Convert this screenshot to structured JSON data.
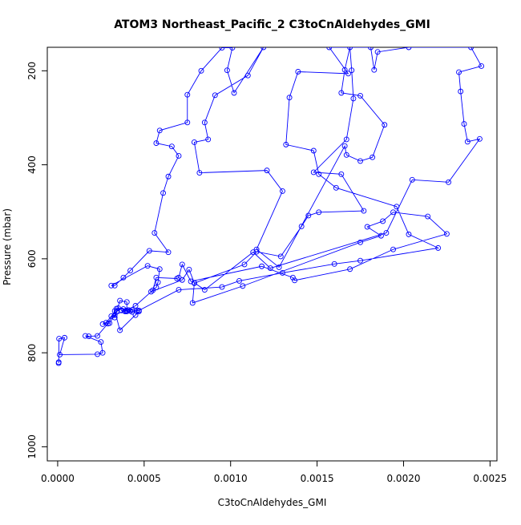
{
  "chart_data": {
    "type": "line",
    "title": "ATOM3 Northeast_Pacific_2 C3toCnAldehydes_GMI",
    "xlabel": "C3toCnAldehydes_GMI",
    "ylabel": "Pressure (mbar)",
    "xlim": [
      -6e-05,
      0.00254
    ],
    "ylim": [
      1030,
      150
    ],
    "y_reversed": true,
    "grid": false,
    "legend": "none",
    "x_ticks": [
      0.0,
      0.0005,
      0.001,
      0.0015,
      0.002,
      0.0025
    ],
    "x_tick_labels": [
      "0.0000",
      "0.0005",
      "0.0010",
      "0.0015",
      "0.0020",
      "0.0025"
    ],
    "y_ticks": [
      200,
      400,
      600,
      800,
      1000
    ],
    "y_tick_labels": [
      "200",
      "400",
      "600",
      "800",
      "1000"
    ],
    "series_color": "#0000ff",
    "series": [
      {
        "marker": "open-circle",
        "points": [
          [
            5.5e-06,
            822
          ],
          [
            6e-06,
            820
          ],
          [
            8e-06,
            770
          ],
          [
            4e-05,
            768
          ],
          [
            1.2e-05,
            804
          ],
          [
            0.00023,
            803
          ],
          [
            0.00026,
            800
          ],
          [
            0.00025,
            777
          ],
          [
            0.00016,
            764
          ],
          [
            0.00018,
            765
          ],
          [
            0.00023,
            764
          ],
          [
            0.00029,
            738
          ],
          [
            0.00034,
            706
          ],
          [
            0.00043,
            709
          ],
          [
            0.00047,
            710
          ],
          [
            0.0007,
            666
          ],
          [
            0.00095,
            660
          ],
          [
            0.00105,
            647
          ],
          [
            0.0013,
            630
          ],
          [
            0.0016,
            611
          ],
          [
            0.00175,
            604
          ],
          [
            0.0022,
            577
          ],
          [
            0.00203,
            548
          ],
          [
            0.00196,
            489
          ],
          [
            0.00161,
            449
          ],
          [
            0.00151,
            420
          ],
          [
            0.00148,
            370
          ],
          [
            0.00132,
            357
          ],
          [
            0.00134,
            257
          ],
          [
            0.00139,
            202
          ],
          [
            0.00168,
            206
          ],
          [
            0.00157,
            150
          ],
          [
            0.00181,
            150
          ],
          [
            0.00183,
            198
          ],
          [
            0.00185,
            160
          ],
          [
            0.00203,
            150
          ],
          [
            0.00239,
            150
          ],
          [
            0.00245,
            190
          ],
          [
            0.00232,
            203
          ],
          [
            0.00233,
            244
          ],
          [
            0.00235,
            313
          ],
          [
            0.00237,
            351
          ],
          [
            0.00244,
            345
          ],
          [
            0.00226,
            437
          ],
          [
            0.00205,
            432
          ],
          [
            0.0019,
            545
          ],
          [
            0.00123,
            620
          ],
          [
            0.00113,
            586
          ],
          [
            0.00085,
            666
          ],
          [
            0.00079,
            651
          ],
          [
            0.00076,
            623
          ],
          [
            0.00072,
            645
          ],
          [
            0.00054,
            670
          ],
          [
            0.00057,
            661
          ],
          [
            0.00058,
            650
          ],
          [
            0.00059,
            622
          ],
          [
            0.00052,
            615
          ],
          [
            0.00031,
            657
          ],
          [
            0.00033,
            657
          ],
          [
            0.00038,
            640
          ],
          [
            0.00042,
            625
          ],
          [
            0.00053,
            583
          ],
          [
            0.00064,
            586
          ],
          [
            0.00056,
            545
          ],
          [
            0.00061,
            460
          ],
          [
            0.00064,
            425
          ],
          [
            0.0007,
            381
          ],
          [
            0.00066,
            361
          ],
          [
            0.00057,
            354
          ],
          [
            0.00059,
            327
          ],
          [
            0.00075,
            310
          ],
          [
            0.00075,
            251
          ],
          [
            0.00083,
            200
          ],
          [
            0.00095,
            151
          ],
          [
            0.00101,
            151
          ],
          [
            0.00098,
            199
          ],
          [
            0.00102,
            247
          ],
          [
            0.00119,
            150
          ],
          [
            0.0011,
            210
          ],
          [
            0.00091,
            252
          ],
          [
            0.00085,
            310
          ],
          [
            0.00087,
            346
          ],
          [
            0.00079,
            352
          ],
          [
            0.00082,
            417
          ],
          [
            0.00121,
            412
          ],
          [
            0.0013,
            456
          ],
          [
            0.00115,
            580
          ],
          [
            0.00128,
            618
          ],
          [
            0.00166,
            360
          ],
          [
            0.00167,
            379
          ],
          [
            0.00175,
            392
          ],
          [
            0.00182,
            384
          ],
          [
            0.00189,
            315
          ],
          [
            0.00175,
            253
          ],
          [
            0.00164,
            247
          ],
          [
            0.00166,
            198
          ],
          [
            0.00169,
            150
          ],
          [
            0.0017,
            199
          ],
          [
            0.00171,
            259
          ],
          [
            0.00167,
            346
          ],
          [
            0.00148,
            416
          ],
          [
            0.00164,
            420
          ],
          [
            0.00177,
            498
          ],
          [
            0.00151,
            501
          ],
          [
            0.00145,
            508
          ],
          [
            0.00141,
            531
          ],
          [
            0.00129,
            595
          ],
          [
            0.00115,
            585
          ],
          [
            0.00108,
            612
          ],
          [
            0.00079,
            652
          ],
          [
            0.00078,
            694
          ],
          [
            0.00107,
            658
          ],
          [
            0.00175,
            565
          ],
          [
            0.00187,
            551
          ],
          [
            0.00179,
            532
          ],
          [
            0.00188,
            520
          ],
          [
            0.00194,
            501
          ],
          [
            0.00214,
            510
          ],
          [
            0.00225,
            547
          ],
          [
            0.00194,
            580
          ],
          [
            0.00169,
            622
          ],
          [
            0.00137,
            646
          ],
          [
            0.00136,
            640
          ],
          [
            0.00118,
            616
          ],
          [
            0.00077,
            648
          ],
          [
            0.00072,
            612
          ],
          [
            0.0007,
            640
          ],
          [
            0.00069,
            642
          ],
          [
            0.00057,
            640
          ],
          [
            0.00055,
            667
          ],
          [
            0.00045,
            700
          ],
          [
            0.00033,
            720
          ],
          [
            0.0003,
            737
          ],
          [
            0.00026,
            739
          ],
          [
            0.00028,
            736
          ],
          [
            0.00031,
            722
          ],
          [
            0.00034,
            712
          ],
          [
            0.00035,
            705
          ],
          [
            0.00038,
            707
          ],
          [
            0.0004,
            712
          ],
          [
            0.00042,
            711
          ],
          [
            0.00043,
            713
          ],
          [
            0.00046,
            711
          ],
          [
            0.00045,
            720
          ],
          [
            0.00047,
            712
          ],
          [
            0.00036,
            752
          ],
          [
            0.00033,
            711
          ],
          [
            0.00033,
            725
          ],
          [
            0.00036,
            689
          ],
          [
            0.0004,
            692
          ],
          [
            0.0004,
            710
          ],
          [
            0.00039,
            712
          ],
          [
            0.00037,
            710
          ],
          [
            0.00039,
            711
          ],
          [
            0.00041,
            709
          ]
        ]
      }
    ]
  }
}
